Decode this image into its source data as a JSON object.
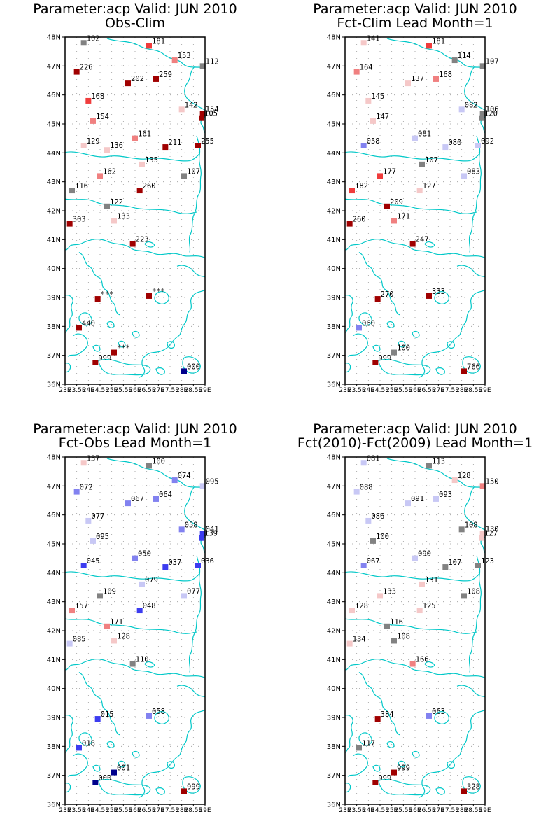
{
  "lat_ticks": [
    "48N",
    "47N",
    "46N",
    "45N",
    "44N",
    "43N",
    "42N",
    "41N",
    "40N",
    "39N",
    "38N",
    "37N",
    "36N"
  ],
  "lon_ticks": [
    "23E",
    "23.5E",
    "24E",
    "24.5E",
    "25E",
    "25.5E",
    "26E",
    "26.5E",
    "27E",
    "27.5E",
    "28E",
    "28.5E",
    "29E"
  ],
  "colors": {
    "coast": "#00c8c8",
    "grid": "#9a9a9a",
    "dark_red": "#a00000",
    "red": "#f03c3c",
    "light_red": "#f08080",
    "pink": "#f5c8c8",
    "gray": "#828282",
    "light_blue": "#c8c8f5",
    "mid_blue": "#8282f0",
    "blue": "#3c3cf0",
    "dark_blue": "#00008c"
  },
  "panels": [
    {
      "title": "Parameter:acp Valid: JUN 2010",
      "subtitle": "Obs-Clim",
      "points": [
        {
          "lon": 23.8,
          "lat": 47.8,
          "label": "102",
          "c": "gray"
        },
        {
          "lon": 26.6,
          "lat": 47.7,
          "label": "181",
          "c": "red"
        },
        {
          "lon": 27.7,
          "lat": 47.2,
          "label": "153",
          "c": "light_red"
        },
        {
          "lon": 28.9,
          "lat": 47.0,
          "label": "112",
          "c": "gray"
        },
        {
          "lon": 23.5,
          "lat": 46.8,
          "label": "226",
          "c": "dark_red"
        },
        {
          "lon": 26.9,
          "lat": 46.55,
          "label": "259",
          "c": "dark_red"
        },
        {
          "lon": 25.7,
          "lat": 46.4,
          "label": "202",
          "c": "dark_red"
        },
        {
          "lon": 24.0,
          "lat": 45.8,
          "label": "168",
          "c": "red"
        },
        {
          "lon": 28.0,
          "lat": 45.5,
          "label": "142",
          "c": "pink"
        },
        {
          "lon": 28.9,
          "lat": 45.35,
          "label": "154",
          "c": "dark_red"
        },
        {
          "lon": 28.85,
          "lat": 45.2,
          "label": "105",
          "c": "dark_red"
        },
        {
          "lon": 24.2,
          "lat": 45.1,
          "label": "154",
          "c": "light_red"
        },
        {
          "lon": 26.0,
          "lat": 44.5,
          "label": "161",
          "c": "light_red"
        },
        {
          "lon": 23.8,
          "lat": 44.25,
          "label": "129",
          "c": "pink"
        },
        {
          "lon": 24.8,
          "lat": 44.1,
          "label": "136",
          "c": "pink"
        },
        {
          "lon": 27.3,
          "lat": 44.2,
          "label": "211",
          "c": "dark_red"
        },
        {
          "lon": 28.7,
          "lat": 44.25,
          "label": "255",
          "c": "dark_red"
        },
        {
          "lon": 26.3,
          "lat": 43.6,
          "label": "135",
          "c": "pink"
        },
        {
          "lon": 28.1,
          "lat": 43.2,
          "label": "107",
          "c": "gray"
        },
        {
          "lon": 24.5,
          "lat": 43.2,
          "label": "162",
          "c": "light_red"
        },
        {
          "lon": 23.3,
          "lat": 42.7,
          "label": "116",
          "c": "gray"
        },
        {
          "lon": 26.2,
          "lat": 42.7,
          "label": "260",
          "c": "dark_red"
        },
        {
          "lon": 24.8,
          "lat": 42.15,
          "label": "122",
          "c": "gray"
        },
        {
          "lon": 25.1,
          "lat": 41.65,
          "label": "133",
          "c": "pink"
        },
        {
          "lon": 23.2,
          "lat": 41.55,
          "label": "303",
          "c": "dark_red"
        },
        {
          "lon": 25.9,
          "lat": 40.85,
          "label": "223",
          "c": "dark_red"
        },
        {
          "lon": 24.4,
          "lat": 38.95,
          "label": "***",
          "c": "dark_red"
        },
        {
          "lon": 26.6,
          "lat": 39.05,
          "label": "***",
          "c": "dark_red"
        },
        {
          "lon": 23.6,
          "lat": 37.95,
          "label": "440",
          "c": "dark_red"
        },
        {
          "lon": 25.1,
          "lat": 37.1,
          "label": "***",
          "c": "dark_red"
        },
        {
          "lon": 24.3,
          "lat": 36.75,
          "label": "999",
          "c": "dark_red"
        },
        {
          "lon": 28.1,
          "lat": 36.45,
          "label": "000",
          "c": "dark_blue"
        }
      ]
    },
    {
      "title": "Parameter:acp Valid: JUN 2010",
      "subtitle": "Fct-Clim Lead Month=1",
      "points": [
        {
          "lon": 23.8,
          "lat": 47.8,
          "label": "141",
          "c": "pink"
        },
        {
          "lon": 26.6,
          "lat": 47.7,
          "label": "181",
          "c": "red"
        },
        {
          "lon": 27.7,
          "lat": 47.2,
          "label": "114",
          "c": "gray"
        },
        {
          "lon": 28.9,
          "lat": 47.0,
          "label": "107",
          "c": "gray"
        },
        {
          "lon": 23.5,
          "lat": 46.8,
          "label": "164",
          "c": "light_red"
        },
        {
          "lon": 26.9,
          "lat": 46.55,
          "label": "168",
          "c": "light_red"
        },
        {
          "lon": 25.7,
          "lat": 46.4,
          "label": "137",
          "c": "pink"
        },
        {
          "lon": 24.0,
          "lat": 45.8,
          "label": "145",
          "c": "pink"
        },
        {
          "lon": 28.0,
          "lat": 45.5,
          "label": "082",
          "c": "light_blue"
        },
        {
          "lon": 28.9,
          "lat": 45.35,
          "label": "106",
          "c": "gray"
        },
        {
          "lon": 28.85,
          "lat": 45.2,
          "label": "120",
          "c": "gray"
        },
        {
          "lon": 24.2,
          "lat": 45.1,
          "label": "147",
          "c": "pink"
        },
        {
          "lon": 26.0,
          "lat": 44.5,
          "label": "081",
          "c": "light_blue"
        },
        {
          "lon": 23.8,
          "lat": 44.25,
          "label": "058",
          "c": "mid_blue"
        },
        {
          "lon": 27.3,
          "lat": 44.2,
          "label": "080",
          "c": "light_blue"
        },
        {
          "lon": 28.7,
          "lat": 44.25,
          "label": "092",
          "c": "light_blue"
        },
        {
          "lon": 26.3,
          "lat": 43.6,
          "label": "107",
          "c": "gray"
        },
        {
          "lon": 28.1,
          "lat": 43.2,
          "label": "083",
          "c": "light_blue"
        },
        {
          "lon": 24.5,
          "lat": 43.2,
          "label": "177",
          "c": "red"
        },
        {
          "lon": 23.3,
          "lat": 42.7,
          "label": "182",
          "c": "red"
        },
        {
          "lon": 26.2,
          "lat": 42.7,
          "label": "127",
          "c": "pink"
        },
        {
          "lon": 24.8,
          "lat": 42.15,
          "label": "209",
          "c": "dark_red"
        },
        {
          "lon": 25.1,
          "lat": 41.65,
          "label": "171",
          "c": "light_red"
        },
        {
          "lon": 23.2,
          "lat": 41.55,
          "label": "260",
          "c": "dark_red"
        },
        {
          "lon": 25.9,
          "lat": 40.85,
          "label": "247",
          "c": "dark_red"
        },
        {
          "lon": 24.4,
          "lat": 38.95,
          "label": "270",
          "c": "dark_red"
        },
        {
          "lon": 26.6,
          "lat": 39.05,
          "label": "333",
          "c": "dark_red"
        },
        {
          "lon": 23.6,
          "lat": 37.95,
          "label": "060",
          "c": "mid_blue"
        },
        {
          "lon": 25.1,
          "lat": 37.1,
          "label": "100",
          "c": "gray"
        },
        {
          "lon": 24.3,
          "lat": 36.75,
          "label": "999",
          "c": "dark_red"
        },
        {
          "lon": 28.1,
          "lat": 36.45,
          "label": "766",
          "c": "dark_red"
        }
      ]
    },
    {
      "title": "Parameter:acp Valid: JUN 2010",
      "subtitle": "Fct-Obs Lead Month=1",
      "points": [
        {
          "lon": 23.8,
          "lat": 47.8,
          "label": "137",
          "c": "pink"
        },
        {
          "lon": 26.6,
          "lat": 47.7,
          "label": "100",
          "c": "gray"
        },
        {
          "lon": 27.7,
          "lat": 47.2,
          "label": "074",
          "c": "mid_blue"
        },
        {
          "lon": 28.9,
          "lat": 47.0,
          "label": "095",
          "c": "light_blue"
        },
        {
          "lon": 23.5,
          "lat": 46.8,
          "label": "072",
          "c": "mid_blue"
        },
        {
          "lon": 26.9,
          "lat": 46.55,
          "label": "064",
          "c": "mid_blue"
        },
        {
          "lon": 25.7,
          "lat": 46.4,
          "label": "067",
          "c": "mid_blue"
        },
        {
          "lon": 24.0,
          "lat": 45.8,
          "label": "077",
          "c": "light_blue"
        },
        {
          "lon": 28.0,
          "lat": 45.5,
          "label": "058",
          "c": "mid_blue"
        },
        {
          "lon": 28.9,
          "lat": 45.35,
          "label": "041",
          "c": "blue"
        },
        {
          "lon": 28.85,
          "lat": 45.2,
          "label": "139",
          "c": "blue"
        },
        {
          "lon": 24.2,
          "lat": 45.1,
          "label": "095",
          "c": "light_blue"
        },
        {
          "lon": 26.0,
          "lat": 44.5,
          "label": "050",
          "c": "mid_blue"
        },
        {
          "lon": 23.8,
          "lat": 44.25,
          "label": "045",
          "c": "blue"
        },
        {
          "lon": 27.3,
          "lat": 44.2,
          "label": "037",
          "c": "blue"
        },
        {
          "lon": 28.7,
          "lat": 44.25,
          "label": "036",
          "c": "blue"
        },
        {
          "lon": 26.3,
          "lat": 43.6,
          "label": "079",
          "c": "light_blue"
        },
        {
          "lon": 28.1,
          "lat": 43.2,
          "label": "077",
          "c": "light_blue"
        },
        {
          "lon": 24.5,
          "lat": 43.2,
          "label": "109",
          "c": "gray"
        },
        {
          "lon": 23.3,
          "lat": 42.7,
          "label": "157",
          "c": "light_red"
        },
        {
          "lon": 26.2,
          "lat": 42.7,
          "label": "048",
          "c": "blue"
        },
        {
          "lon": 24.8,
          "lat": 42.15,
          "label": "171",
          "c": "light_red"
        },
        {
          "lon": 25.1,
          "lat": 41.65,
          "label": "128",
          "c": "pink"
        },
        {
          "lon": 23.2,
          "lat": 41.55,
          "label": "085",
          "c": "light_blue"
        },
        {
          "lon": 25.9,
          "lat": 40.85,
          "label": "110",
          "c": "gray"
        },
        {
          "lon": 24.4,
          "lat": 38.95,
          "label": "015",
          "c": "blue"
        },
        {
          "lon": 26.6,
          "lat": 39.05,
          "label": "058",
          "c": "mid_blue"
        },
        {
          "lon": 23.6,
          "lat": 37.95,
          "label": "018",
          "c": "blue"
        },
        {
          "lon": 25.1,
          "lat": 37.1,
          "label": "001",
          "c": "dark_blue"
        },
        {
          "lon": 24.3,
          "lat": 36.75,
          "label": "000",
          "c": "dark_blue"
        },
        {
          "lon": 28.1,
          "lat": 36.45,
          "label": "999",
          "c": "dark_red"
        }
      ]
    },
    {
      "title": "Parameter:acp Valid: JUN 2010",
      "subtitle": "Fct(2010)-Fct(2009) Lead Month=1",
      "points": [
        {
          "lon": 23.8,
          "lat": 47.8,
          "label": "081",
          "c": "light_blue"
        },
        {
          "lon": 26.6,
          "lat": 47.7,
          "label": "113",
          "c": "gray"
        },
        {
          "lon": 27.7,
          "lat": 47.2,
          "label": "128",
          "c": "pink"
        },
        {
          "lon": 28.9,
          "lat": 47.0,
          "label": "150",
          "c": "light_red"
        },
        {
          "lon": 23.5,
          "lat": 46.8,
          "label": "088",
          "c": "light_blue"
        },
        {
          "lon": 26.9,
          "lat": 46.55,
          "label": "093",
          "c": "light_blue"
        },
        {
          "lon": 25.7,
          "lat": 46.4,
          "label": "091",
          "c": "light_blue"
        },
        {
          "lon": 24.0,
          "lat": 45.8,
          "label": "086",
          "c": "light_blue"
        },
        {
          "lon": 28.0,
          "lat": 45.5,
          "label": "108",
          "c": "gray"
        },
        {
          "lon": 28.9,
          "lat": 45.35,
          "label": "130",
          "c": "pink"
        },
        {
          "lon": 28.85,
          "lat": 45.2,
          "label": "127",
          "c": "pink"
        },
        {
          "lon": 24.2,
          "lat": 45.1,
          "label": "100",
          "c": "gray"
        },
        {
          "lon": 26.0,
          "lat": 44.5,
          "label": "090",
          "c": "light_blue"
        },
        {
          "lon": 23.8,
          "lat": 44.25,
          "label": "067",
          "c": "mid_blue"
        },
        {
          "lon": 27.3,
          "lat": 44.2,
          "label": "107",
          "c": "gray"
        },
        {
          "lon": 28.7,
          "lat": 44.25,
          "label": "123",
          "c": "gray"
        },
        {
          "lon": 26.3,
          "lat": 43.6,
          "label": "131",
          "c": "pink"
        },
        {
          "lon": 28.1,
          "lat": 43.2,
          "label": "108",
          "c": "gray"
        },
        {
          "lon": 24.5,
          "lat": 43.2,
          "label": "133",
          "c": "pink"
        },
        {
          "lon": 23.3,
          "lat": 42.7,
          "label": "128",
          "c": "pink"
        },
        {
          "lon": 26.2,
          "lat": 42.7,
          "label": "125",
          "c": "pink"
        },
        {
          "lon": 24.8,
          "lat": 42.15,
          "label": "116",
          "c": "gray"
        },
        {
          "lon": 25.1,
          "lat": 41.65,
          "label": "108",
          "c": "gray"
        },
        {
          "lon": 23.2,
          "lat": 41.55,
          "label": "134",
          "c": "pink"
        },
        {
          "lon": 25.9,
          "lat": 40.85,
          "label": "166",
          "c": "light_red"
        },
        {
          "lon": 24.4,
          "lat": 38.95,
          "label": "384",
          "c": "dark_red"
        },
        {
          "lon": 26.6,
          "lat": 39.05,
          "label": "063",
          "c": "mid_blue"
        },
        {
          "lon": 23.6,
          "lat": 37.95,
          "label": "117",
          "c": "gray"
        },
        {
          "lon": 25.1,
          "lat": 37.1,
          "label": "999",
          "c": "dark_red"
        },
        {
          "lon": 24.3,
          "lat": 36.75,
          "label": "999",
          "c": "dark_red"
        },
        {
          "lon": 28.1,
          "lat": 36.45,
          "label": "328",
          "c": "dark_red"
        }
      ]
    }
  ]
}
